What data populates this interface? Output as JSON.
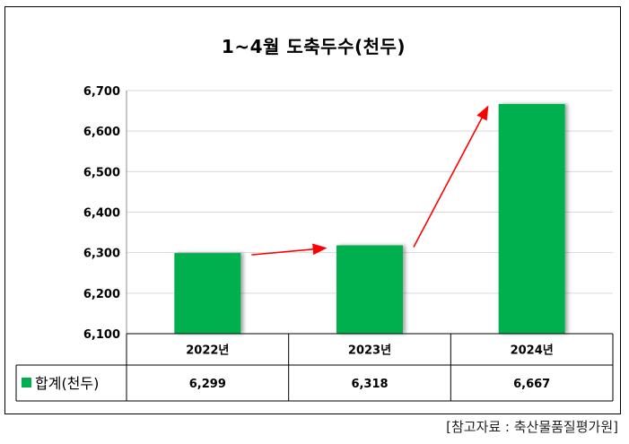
{
  "chart_data": {
    "type": "bar",
    "title": "1~4월 도축두수(천두)",
    "categories": [
      "2022년",
      "2023년",
      "2024년"
    ],
    "series": [
      {
        "name": "합계(천두)",
        "values": [
          6299,
          6318,
          6667
        ],
        "labels": [
          "6,299",
          "6,318",
          "6,667"
        ]
      }
    ],
    "ylim": [
      6100,
      6700
    ],
    "yticks": [
      6100,
      6200,
      6300,
      6400,
      6500,
      6600,
      6700
    ],
    "ytick_labels": [
      "6,100",
      "6,200",
      "6,300",
      "6,400",
      "6,500",
      "6,600",
      "6,700"
    ],
    "grid": true,
    "legend": "data-table",
    "annotations": [
      "red arrows between consecutive bars indicating increase"
    ]
  },
  "colors": {
    "bar": "#00b050",
    "arrow": "#ff0000",
    "grid": "#d9d9d9"
  },
  "source_note": "[참고자료 : 축산물품질평가원]"
}
